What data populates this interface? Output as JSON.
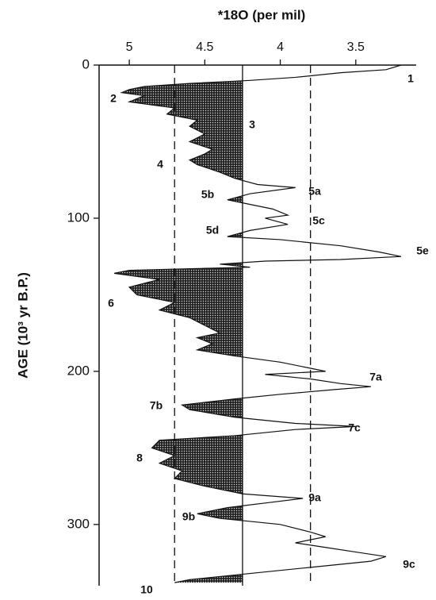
{
  "chart_data": {
    "type": "line",
    "orientation": "horizontal-values",
    "title": "*18O (per mil)",
    "y_label": "AGE (10³ yr B.P.)",
    "x": [
      0,
      3,
      5,
      8,
      10,
      12,
      14,
      16,
      18,
      20,
      24,
      28,
      32,
      36,
      40,
      45,
      50,
      55,
      58,
      62,
      65,
      70,
      74,
      78,
      80,
      84,
      88,
      90,
      94,
      98,
      100,
      104,
      108,
      112,
      114,
      118,
      122,
      125,
      127,
      128,
      130,
      132,
      134,
      136,
      140,
      145,
      150,
      155,
      160,
      165,
      170,
      175,
      178,
      182,
      186,
      190,
      194,
      198,
      200,
      202,
      205,
      208,
      210,
      212,
      215,
      218,
      222,
      225,
      230,
      234,
      236,
      238,
      242,
      245,
      250,
      255,
      260,
      265,
      270,
      275,
      280,
      283,
      286,
      289,
      293,
      296,
      298,
      300,
      305,
      308,
      312,
      315,
      318,
      321,
      324,
      328,
      332,
      336,
      338
    ],
    "series": [
      {
        "color": "#111111",
        "values": [
          3.2,
          3.3,
          3.6,
          3.9,
          4.2,
          4.6,
          4.9,
          5.0,
          5.05,
          4.9,
          5.0,
          4.7,
          4.75,
          4.55,
          4.6,
          4.5,
          4.6,
          4.45,
          4.5,
          4.6,
          4.55,
          4.4,
          4.3,
          4.15,
          3.9,
          4.2,
          4.35,
          4.25,
          4.05,
          3.95,
          4.1,
          3.95,
          4.2,
          4.35,
          4.0,
          3.6,
          3.35,
          3.2,
          3.6,
          4.1,
          4.4,
          4.2,
          5.0,
          5.1,
          4.8,
          5.0,
          4.95,
          4.7,
          4.8,
          4.6,
          4.5,
          4.4,
          4.55,
          4.45,
          4.55,
          4.3,
          4.0,
          3.8,
          3.7,
          4.1,
          3.8,
          3.6,
          3.4,
          3.65,
          4.0,
          4.3,
          4.65,
          4.6,
          4.3,
          3.9,
          3.5,
          3.9,
          4.3,
          4.8,
          4.85,
          4.7,
          4.8,
          4.65,
          4.7,
          4.5,
          4.25,
          3.85,
          4.1,
          4.35,
          4.55,
          4.4,
          4.2,
          4.0,
          3.8,
          3.7,
          3.9,
          3.7,
          3.5,
          3.3,
          3.4,
          3.8,
          4.2,
          4.6,
          4.7
        ]
      }
    ],
    "xlim": [
      0,
      340
    ],
    "xticks": [
      0,
      100,
      200,
      300
    ],
    "ylim": [
      5.2,
      3.1
    ],
    "yticks": [
      5,
      4.5,
      4,
      3.5
    ],
    "shade_threshold": 4.25,
    "shade_color": "#444444",
    "reference_lines": [
      {
        "value": 4.7,
        "style": "dashed"
      },
      {
        "value": 4.25,
        "style": "solid"
      },
      {
        "value": 3.8,
        "style": "dashed"
      }
    ],
    "annotations": [
      "1",
      "2",
      "3",
      "4",
      "5a",
      "5b",
      "5c",
      "5d",
      "5e",
      "6",
      "7a",
      "7b",
      "7c",
      "8",
      "9a",
      "9b",
      "9c",
      "10"
    ]
  }
}
